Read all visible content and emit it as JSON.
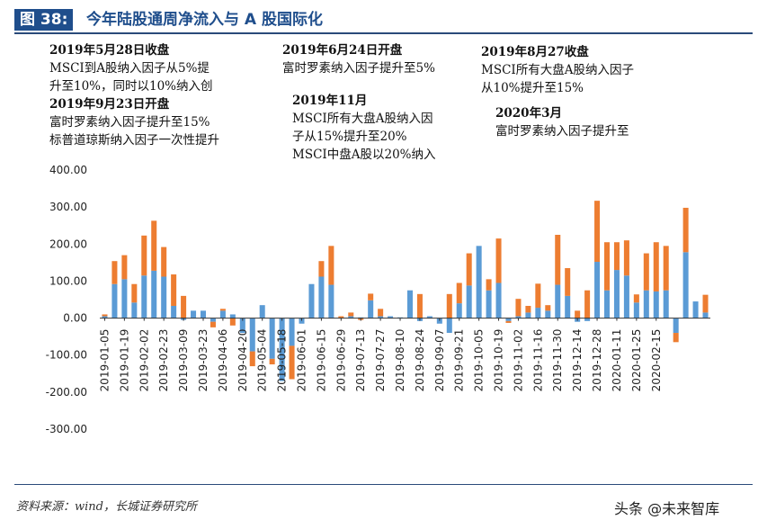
{
  "title": {
    "label": "图 38:",
    "text": "今年陆股通周净流入与 A 股国际化"
  },
  "annotations": [
    {
      "head": "2019年5月28日收盘",
      "lines": [
        "MSCI到A股纳入因子从5%提",
        "升至10%，同时以10%纳入创"
      ]
    },
    {
      "head": "2019年9月23日开盘",
      "lines": [
        "富时罗素纳入因子提升至15%",
        "标普道琼斯纳入因子一次性提升"
      ]
    },
    {
      "head": "2019年6月24日开盘",
      "lines": [
        "富时罗素纳入因子提升至5%"
      ]
    },
    {
      "head": "2019年11月",
      "lines": [
        "MSCI所有大盘A股纳入因",
        "子从15%提升至20%",
        "MSCI中盘A股以20%纳入"
      ]
    },
    {
      "head": "2019年8月27收盘",
      "lines": [
        "MSCI所有大盘A股纳入因子",
        "从10%提升至15%"
      ]
    },
    {
      "head": "2020年3月",
      "lines": [
        "富时罗素纳入因子提升至"
      ]
    }
  ],
  "chart_data": {
    "type": "bar",
    "stacked": true,
    "ylim": [
      -300,
      400
    ],
    "yticks": [
      "400.00",
      "300.00",
      "200.00",
      "100.00",
      "0.00",
      "-100.00",
      "-200.00",
      "-300.00"
    ],
    "ytick_values": [
      400,
      300,
      200,
      100,
      0,
      -100,
      -200,
      -300
    ],
    "xtick_labels": [
      "2019-01-05",
      "2019-01-19",
      "2019-02-02",
      "2019-02-23",
      "2019-03-09",
      "2019-03-23",
      "2019-04-06",
      "2019-04-20",
      "2019-05-04",
      "2019-05-18",
      "2019-06-01",
      "2019-06-15",
      "2019-06-29",
      "2019-07-13",
      "2019-07-27",
      "2019-08-10",
      "2019-08-24",
      "2019-09-07",
      "2019-09-21",
      "2019-10-05",
      "2019-10-19",
      "2019-11-02",
      "2019-11-16",
      "2019-11-30",
      "2019-12-14",
      "2019-12-28",
      "2020-01-11",
      "2020-01-25",
      "2020-02-15"
    ],
    "series": [
      {
        "color": "#5b9bd5",
        "values": [
          5,
          92,
          105,
          42,
          115,
          128,
          112,
          33,
          -5,
          20,
          20,
          -10,
          20,
          10,
          -40,
          -90,
          35,
          -110,
          -170,
          -75,
          -15,
          92,
          112,
          90,
          0,
          5,
          2,
          48,
          5,
          5,
          2,
          75,
          -8,
          5,
          -15,
          -40,
          40,
          88,
          195,
          75,
          95,
          -8,
          5,
          15,
          28,
          20,
          90,
          60,
          -10,
          -8,
          152,
          75,
          130,
          115,
          42,
          75,
          72,
          75,
          -40,
          178,
          45,
          15
        ]
      },
      {
        "color": "#ed7d31",
        "values": [
          5,
          62,
          65,
          50,
          108,
          135,
          80,
          85,
          60,
          0,
          0,
          -15,
          5,
          -20,
          0,
          -40,
          0,
          -15,
          0,
          -90,
          0,
          0,
          42,
          105,
          5,
          10,
          -5,
          18,
          20,
          0,
          0,
          0,
          65,
          0,
          0,
          65,
          55,
          87,
          0,
          30,
          120,
          -5,
          47,
          18,
          65,
          15,
          135,
          75,
          20,
          75,
          165,
          130,
          75,
          95,
          22,
          100,
          133,
          120,
          -25,
          120,
          0,
          48
        ]
      }
    ],
    "grid": false,
    "legend": "none"
  },
  "footer": {
    "source": "资料来源：wind，长城证券研究所",
    "watermark": "头条 @未来智库"
  }
}
